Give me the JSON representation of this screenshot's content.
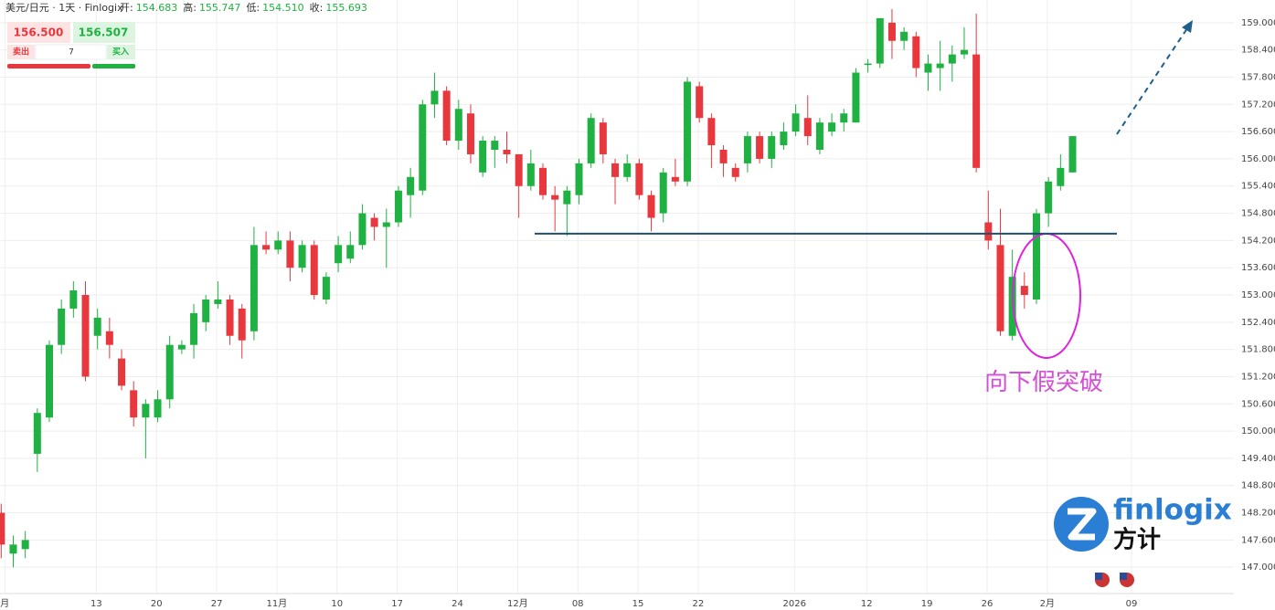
{
  "header": {
    "symbol": "美元/日元 · 1天 · Finlogix",
    "fields": [
      {
        "label": "开:",
        "value": "154.683"
      },
      {
        "label": "高:",
        "value": "155.747"
      },
      {
        "label": "低:",
        "value": "154.510"
      },
      {
        "label": "收:",
        "value": "155.693"
      }
    ]
  },
  "trade": {
    "sell_price": "156.500",
    "buy_price": "156.507",
    "sell": "卖出",
    "quantity": "7",
    "buy": "买入"
  },
  "logo": {
    "name": "finlogix",
    "cn": "方计"
  },
  "chart_data": {
    "type": "candlestick",
    "up_color": "#1fb141",
    "down_color": "#e8383d",
    "grid": true,
    "ylim": [
      146.42,
      159.5
    ],
    "yticks": [
      {
        "value": 147,
        "label": "147.000"
      },
      {
        "value": 147.6,
        "label": "147.600"
      },
      {
        "value": 148.2,
        "label": "148.200"
      },
      {
        "value": 148.8,
        "label": "148.800"
      },
      {
        "value": 149.4,
        "label": "149.400"
      },
      {
        "value": 150,
        "label": "150.000"
      },
      {
        "value": 150.6,
        "label": "150.600"
      },
      {
        "value": 151.2,
        "label": "151.200"
      },
      {
        "value": 151.8,
        "label": "151.800"
      },
      {
        "value": 152.4,
        "label": "152.400"
      },
      {
        "value": 153,
        "label": "153.000"
      },
      {
        "value": 153.6,
        "label": "153.600"
      },
      {
        "value": 154.2,
        "label": "154.200"
      },
      {
        "value": 154.8,
        "label": "154.800"
      },
      {
        "value": 155.4,
        "label": "155.400"
      },
      {
        "value": 156,
        "label": "156.000"
      },
      {
        "value": 156.6,
        "label": "156.600"
      },
      {
        "value": 157.2,
        "label": "157.200"
      },
      {
        "value": 157.8,
        "label": "157.800"
      },
      {
        "value": 158.4,
        "label": "158.400"
      },
      {
        "value": 159,
        "label": "159.000"
      }
    ],
    "xlim": [
      0,
      102.5
    ],
    "xticks": [
      {
        "value": 0.4,
        "label": "月"
      },
      8,
      13,
      18,
      23,
      28,
      33,
      38,
      43,
      48,
      53,
      58,
      66,
      72,
      77,
      82,
      87,
      94
    ],
    "xtick_labels": [
      "月",
      "13",
      "20",
      "27",
      "11月",
      "10",
      "17",
      "24",
      "12月",
      "08",
      "15",
      "22",
      "2026",
      "12",
      "19",
      "26",
      "2月",
      "09"
    ],
    "ohlc": {
      "open": [
        148.2,
        147.3,
        147.4,
        149.5,
        150.3,
        151.9,
        152.7,
        153.0,
        152.1,
        152.2,
        151.6,
        150.9,
        150.3,
        150.3,
        150.7,
        151.8,
        151.9,
        152.4,
        152.8,
        152.9,
        152.7,
        152.2,
        154.1,
        154.0,
        154.2,
        153.6,
        154.1,
        152.9,
        153.7,
        153.8,
        154.1,
        154.7,
        154.5,
        154.6,
        155.2,
        155.3,
        157.2,
        157.5,
        156.4,
        157.0,
        155.7,
        156.2,
        156.2,
        156.1,
        155.4,
        155.8,
        155.2,
        155.0,
        155.2,
        155.9,
        156.8,
        155.9,
        155.6,
        155.9,
        155.2,
        154.8,
        155.6,
        155.5,
        157.6,
        156.9,
        156.2,
        155.8,
        155.9,
        156.5,
        156.0,
        156.3,
        156.6,
        156.9,
        156.2,
        156.6,
        156.8,
        156.8,
        158.1,
        158.1,
        159.0,
        158.6,
        158.7,
        157.9,
        158.0,
        158.1,
        158.3,
        158.3,
        154.6,
        154.1,
        152.1,
        153.2,
        152.9,
        154.8,
        155.4,
        155.7
      ],
      "high": [
        148.4,
        147.7,
        147.8,
        150.5,
        152.0,
        152.9,
        153.3,
        153.3,
        152.7,
        152.5,
        151.8,
        151.1,
        150.7,
        150.9,
        152.1,
        152.0,
        152.8,
        153.0,
        153.3,
        153.0,
        152.8,
        154.5,
        154.4,
        154.4,
        154.4,
        154.2,
        154.2,
        153.5,
        154.3,
        154.4,
        155.0,
        154.8,
        154.9,
        155.4,
        155.8,
        157.3,
        157.9,
        157.6,
        157.3,
        157.2,
        156.5,
        156.5,
        156.6,
        156.1,
        156.2,
        155.9,
        155.4,
        155.4,
        156.0,
        157.0,
        156.9,
        156.0,
        156.1,
        156.0,
        155.3,
        155.8,
        156.0,
        157.8,
        157.7,
        157.0,
        156.3,
        155.9,
        156.6,
        156.6,
        156.6,
        156.8,
        157.2,
        157.4,
        156.9,
        157.0,
        157.1,
        158.0,
        158.2,
        159.1,
        159.3,
        158.9,
        158.8,
        158.3,
        158.6,
        158.5,
        158.9,
        159.2,
        155.3,
        154.9,
        154.0,
        153.5,
        154.9,
        155.6,
        156.1,
        156.5
      ],
      "low": [
        147.2,
        147.0,
        147.2,
        149.1,
        150.2,
        151.7,
        152.5,
        151.1,
        151.8,
        151.6,
        150.9,
        150.1,
        149.4,
        150.2,
        150.5,
        151.7,
        151.6,
        152.2,
        152.7,
        151.9,
        151.6,
        152.0,
        153.9,
        153.9,
        153.3,
        153.5,
        152.9,
        152.8,
        153.5,
        153.7,
        154.0,
        154.2,
        153.6,
        154.5,
        154.7,
        155.2,
        156.9,
        156.3,
        156.2,
        155.9,
        155.6,
        155.8,
        155.9,
        154.7,
        155.3,
        155.1,
        154.4,
        154.3,
        155.0,
        155.8,
        155.9,
        155.0,
        155.5,
        155.1,
        154.4,
        154.6,
        155.4,
        155.4,
        156.8,
        155.8,
        155.6,
        155.5,
        155.7,
        155.9,
        155.8,
        156.2,
        156.5,
        156.3,
        156.1,
        156.5,
        156.6,
        156.8,
        157.9,
        158.0,
        158.2,
        158.4,
        157.8,
        157.5,
        157.5,
        157.7,
        158.2,
        155.7,
        154.0,
        152.1,
        152.0,
        152.7,
        152.8,
        154.5,
        155.3,
        155.7
      ],
      "close": [
        147.5,
        147.5,
        147.6,
        150.4,
        151.9,
        152.7,
        153.1,
        151.2,
        152.5,
        151.9,
        151.0,
        150.3,
        150.6,
        150.7,
        151.9,
        151.9,
        152.6,
        152.9,
        152.9,
        152.1,
        152.0,
        154.1,
        154.0,
        154.2,
        153.6,
        154.1,
        153.0,
        153.4,
        154.1,
        154.1,
        154.8,
        154.5,
        154.6,
        155.3,
        155.6,
        157.2,
        157.5,
        156.4,
        157.1,
        156.1,
        156.4,
        156.4,
        156.1,
        155.4,
        155.9,
        155.2,
        155.1,
        155.3,
        155.9,
        156.9,
        156.1,
        155.6,
        155.9,
        155.2,
        154.7,
        155.7,
        155.5,
        157.7,
        156.9,
        156.3,
        155.9,
        155.6,
        156.5,
        156.0,
        156.5,
        156.6,
        157.0,
        156.5,
        156.8,
        156.8,
        157.0,
        157.9,
        158.1,
        159.1,
        158.6,
        158.8,
        158.0,
        158.1,
        158.1,
        158.3,
        158.4,
        155.8,
        154.2,
        152.2,
        153.4,
        153.0,
        154.8,
        155.5,
        155.8,
        156.5
      ]
    },
    "support_line": 154.35,
    "annotation": "向下假突破"
  }
}
